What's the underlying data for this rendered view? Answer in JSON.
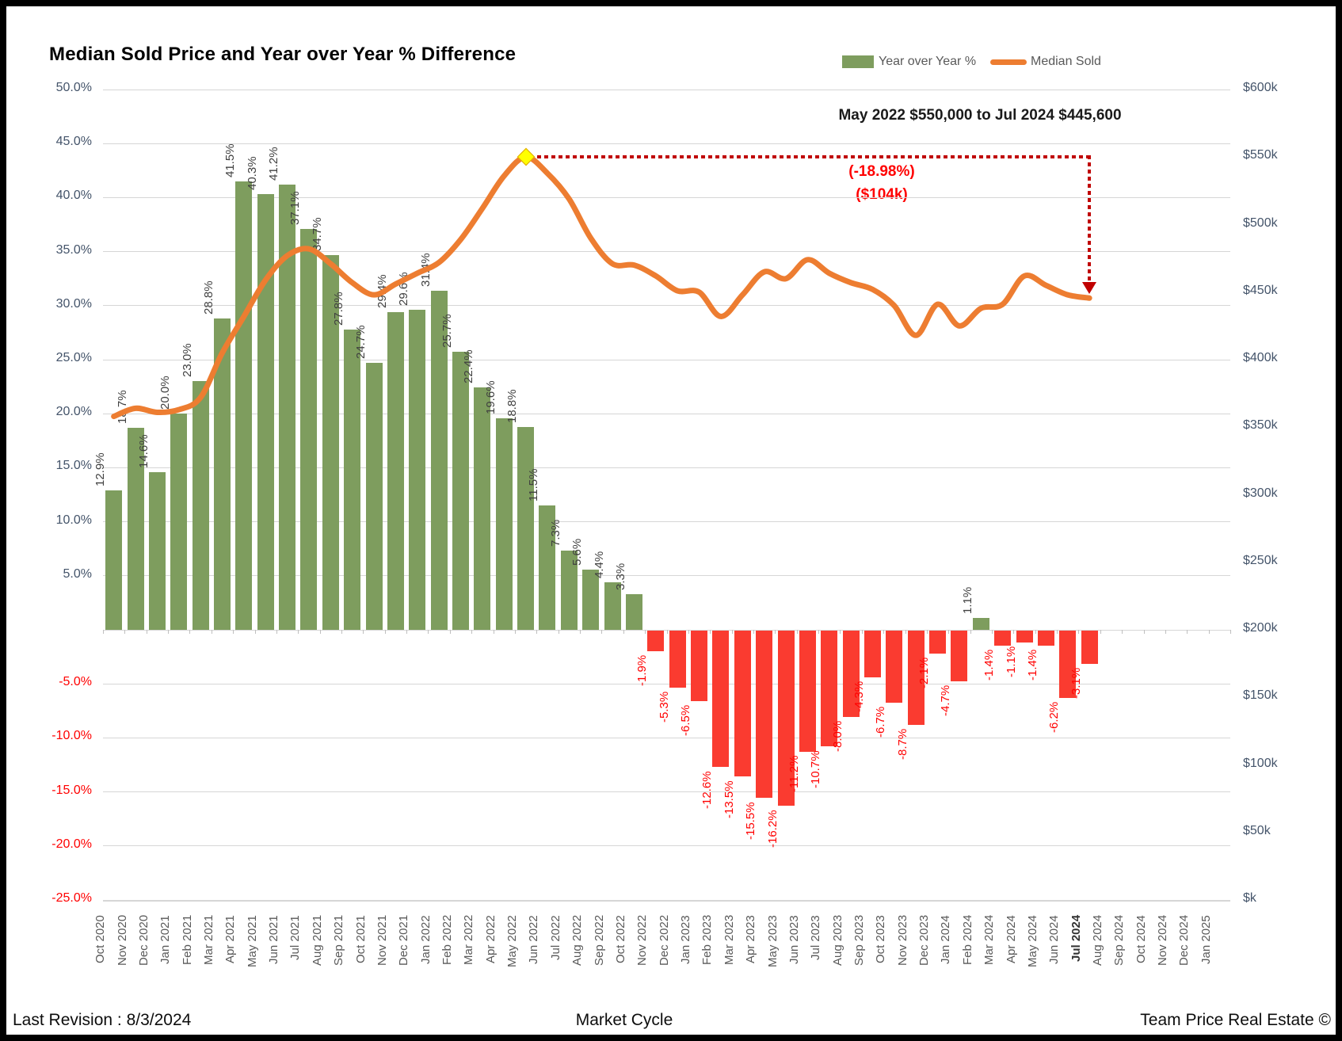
{
  "title": "Median Sold Price and Year over Year % Difference",
  "legend": {
    "yoy_label": "Year over Year %",
    "median_label": "Median Sold"
  },
  "annotations": {
    "range_note": "May 2022 $550,000 to Jul 2024 $445,600",
    "pct_change": "(-18.98%)",
    "dollar_change": "($104k)"
  },
  "footer": {
    "left": "Last Revision : 8/3/2024",
    "center": "Market Cycle",
    "right": "Team Price Real Estate ©"
  },
  "axes": {
    "left_ticks": [
      {
        "v": 50,
        "t": "50.0%"
      },
      {
        "v": 45,
        "t": "45.0%"
      },
      {
        "v": 40,
        "t": "40.0%"
      },
      {
        "v": 35,
        "t": "35.0%"
      },
      {
        "v": 30,
        "t": "30.0%"
      },
      {
        "v": 25,
        "t": "25.0%"
      },
      {
        "v": 20,
        "t": "20.0%"
      },
      {
        "v": 15,
        "t": "15.0%"
      },
      {
        "v": 10,
        "t": "10.0%"
      },
      {
        "v": 5,
        "t": "5.0%"
      },
      {
        "v": -5,
        "t": "-5.0%"
      },
      {
        "v": -10,
        "t": "-10.0%"
      },
      {
        "v": -15,
        "t": "-15.0%"
      },
      {
        "v": -20,
        "t": "-20.0%"
      },
      {
        "v": -25,
        "t": "-25.0%"
      }
    ],
    "right_ticks": [
      {
        "v": 600000,
        "t": "$600k"
      },
      {
        "v": 550000,
        "t": "$550k"
      },
      {
        "v": 500000,
        "t": "$500k"
      },
      {
        "v": 450000,
        "t": "$450k"
      },
      {
        "v": 400000,
        "t": "$400k"
      },
      {
        "v": 350000,
        "t": "$350k"
      },
      {
        "v": 300000,
        "t": "$300k"
      },
      {
        "v": 250000,
        "t": "$250k"
      },
      {
        "v": 200000,
        "t": "$200k"
      },
      {
        "v": 150000,
        "t": "$150k"
      },
      {
        "v": 100000,
        "t": "$100k"
      },
      {
        "v": 50000,
        "t": "$50k"
      },
      {
        "v": 0,
        "t": "$k"
      }
    ]
  },
  "chart_data": {
    "type": "combo bar+line",
    "categories": [
      "Oct 2020",
      "Nov 2020",
      "Dec 2020",
      "Jan 2021",
      "Feb 2021",
      "Mar 2021",
      "Apr 2021",
      "May 2021",
      "Jun 2021",
      "Jul 2021",
      "Aug 2021",
      "Sep 2021",
      "Oct 2021",
      "Nov 2021",
      "Dec 2021",
      "Jan 2022",
      "Feb 2022",
      "Mar 2022",
      "Apr 2022",
      "May 2022",
      "Jun 2022",
      "Jul 2022",
      "Aug 2022",
      "Sep 2022",
      "Oct 2022",
      "Nov 2022",
      "Dec 2022",
      "Jan 2023",
      "Feb 2023",
      "Mar 2023",
      "Apr 2023",
      "May 2023",
      "Jun 2023",
      "Jul 2023",
      "Aug 2023",
      "Sep 2023",
      "Oct 2023",
      "Nov 2023",
      "Dec 2023",
      "Jan 2024",
      "Feb 2024",
      "Mar 2024",
      "Apr 2024",
      "May 2024",
      "Jun 2024",
      "Jul 2024",
      "Aug 2024",
      "Sep 2024",
      "Oct 2024",
      "Nov 2024",
      "Dec 2024",
      "Jan 2025"
    ],
    "series": [
      {
        "name": "Year over Year %",
        "type": "bar",
        "axis": "left_percent",
        "values": [
          12.9,
          18.7,
          14.6,
          20.0,
          23.0,
          28.8,
          41.5,
          40.3,
          41.2,
          37.1,
          34.7,
          27.8,
          24.7,
          29.4,
          29.6,
          31.4,
          25.7,
          22.4,
          19.6,
          18.8,
          11.5,
          7.3,
          5.6,
          4.4,
          3.3,
          -1.9,
          -5.3,
          -6.5,
          -12.6,
          -13.5,
          -15.5,
          -16.2,
          -11.2,
          -10.7,
          -8.0,
          -4.3,
          -6.7,
          -8.7,
          -2.1,
          -4.7,
          1.1,
          -1.4,
          -1.1,
          -1.4,
          -6.2,
          -3.1
        ]
      },
      {
        "name": "Median Sold",
        "type": "line",
        "axis": "right_dollars",
        "values": [
          358000,
          364000,
          361000,
          363000,
          372000,
          405000,
          432000,
          459000,
          477000,
          482000,
          471000,
          457000,
          448000,
          456000,
          464000,
          472000,
          489000,
          512000,
          536000,
          550000,
          538000,
          519000,
          490000,
          471000,
          470000,
          462000,
          451000,
          450000,
          432000,
          448000,
          465000,
          460000,
          474000,
          464000,
          457000,
          452000,
          440000,
          418000,
          441000,
          425000,
          438000,
          441000,
          462000,
          455000,
          448000,
          445600
        ]
      }
    ],
    "left_axis": {
      "min": -25,
      "max": 50,
      "step": 5,
      "format": "percent",
      "grid": true
    },
    "right_axis": {
      "min": 0,
      "max": 600000,
      "step": 50000,
      "format": "$k",
      "grid": false
    },
    "legend_position": "top-right",
    "highlight_point": {
      "category": "May 2022",
      "value": 550000,
      "marker": "yellow-diamond"
    },
    "arrow_end_point": {
      "category": "Jul 2024",
      "value": 445600
    },
    "bold_x_label": "Jul 2024"
  },
  "colors": {
    "bar_positive": "#7E9D5E",
    "bar_negative": "#FA3B30",
    "line": "#ED7D31",
    "negative_text": "#FF0000",
    "positive_bar_label": "#404040",
    "axis_text": "#44546A",
    "x_axis_text": "#595959",
    "gridline": "#D6D6D6",
    "zero_tick": "#BFBFBF",
    "arrow": "#C00000",
    "marker_fill": "#FFFF00",
    "marker_border": "#E0A800"
  }
}
